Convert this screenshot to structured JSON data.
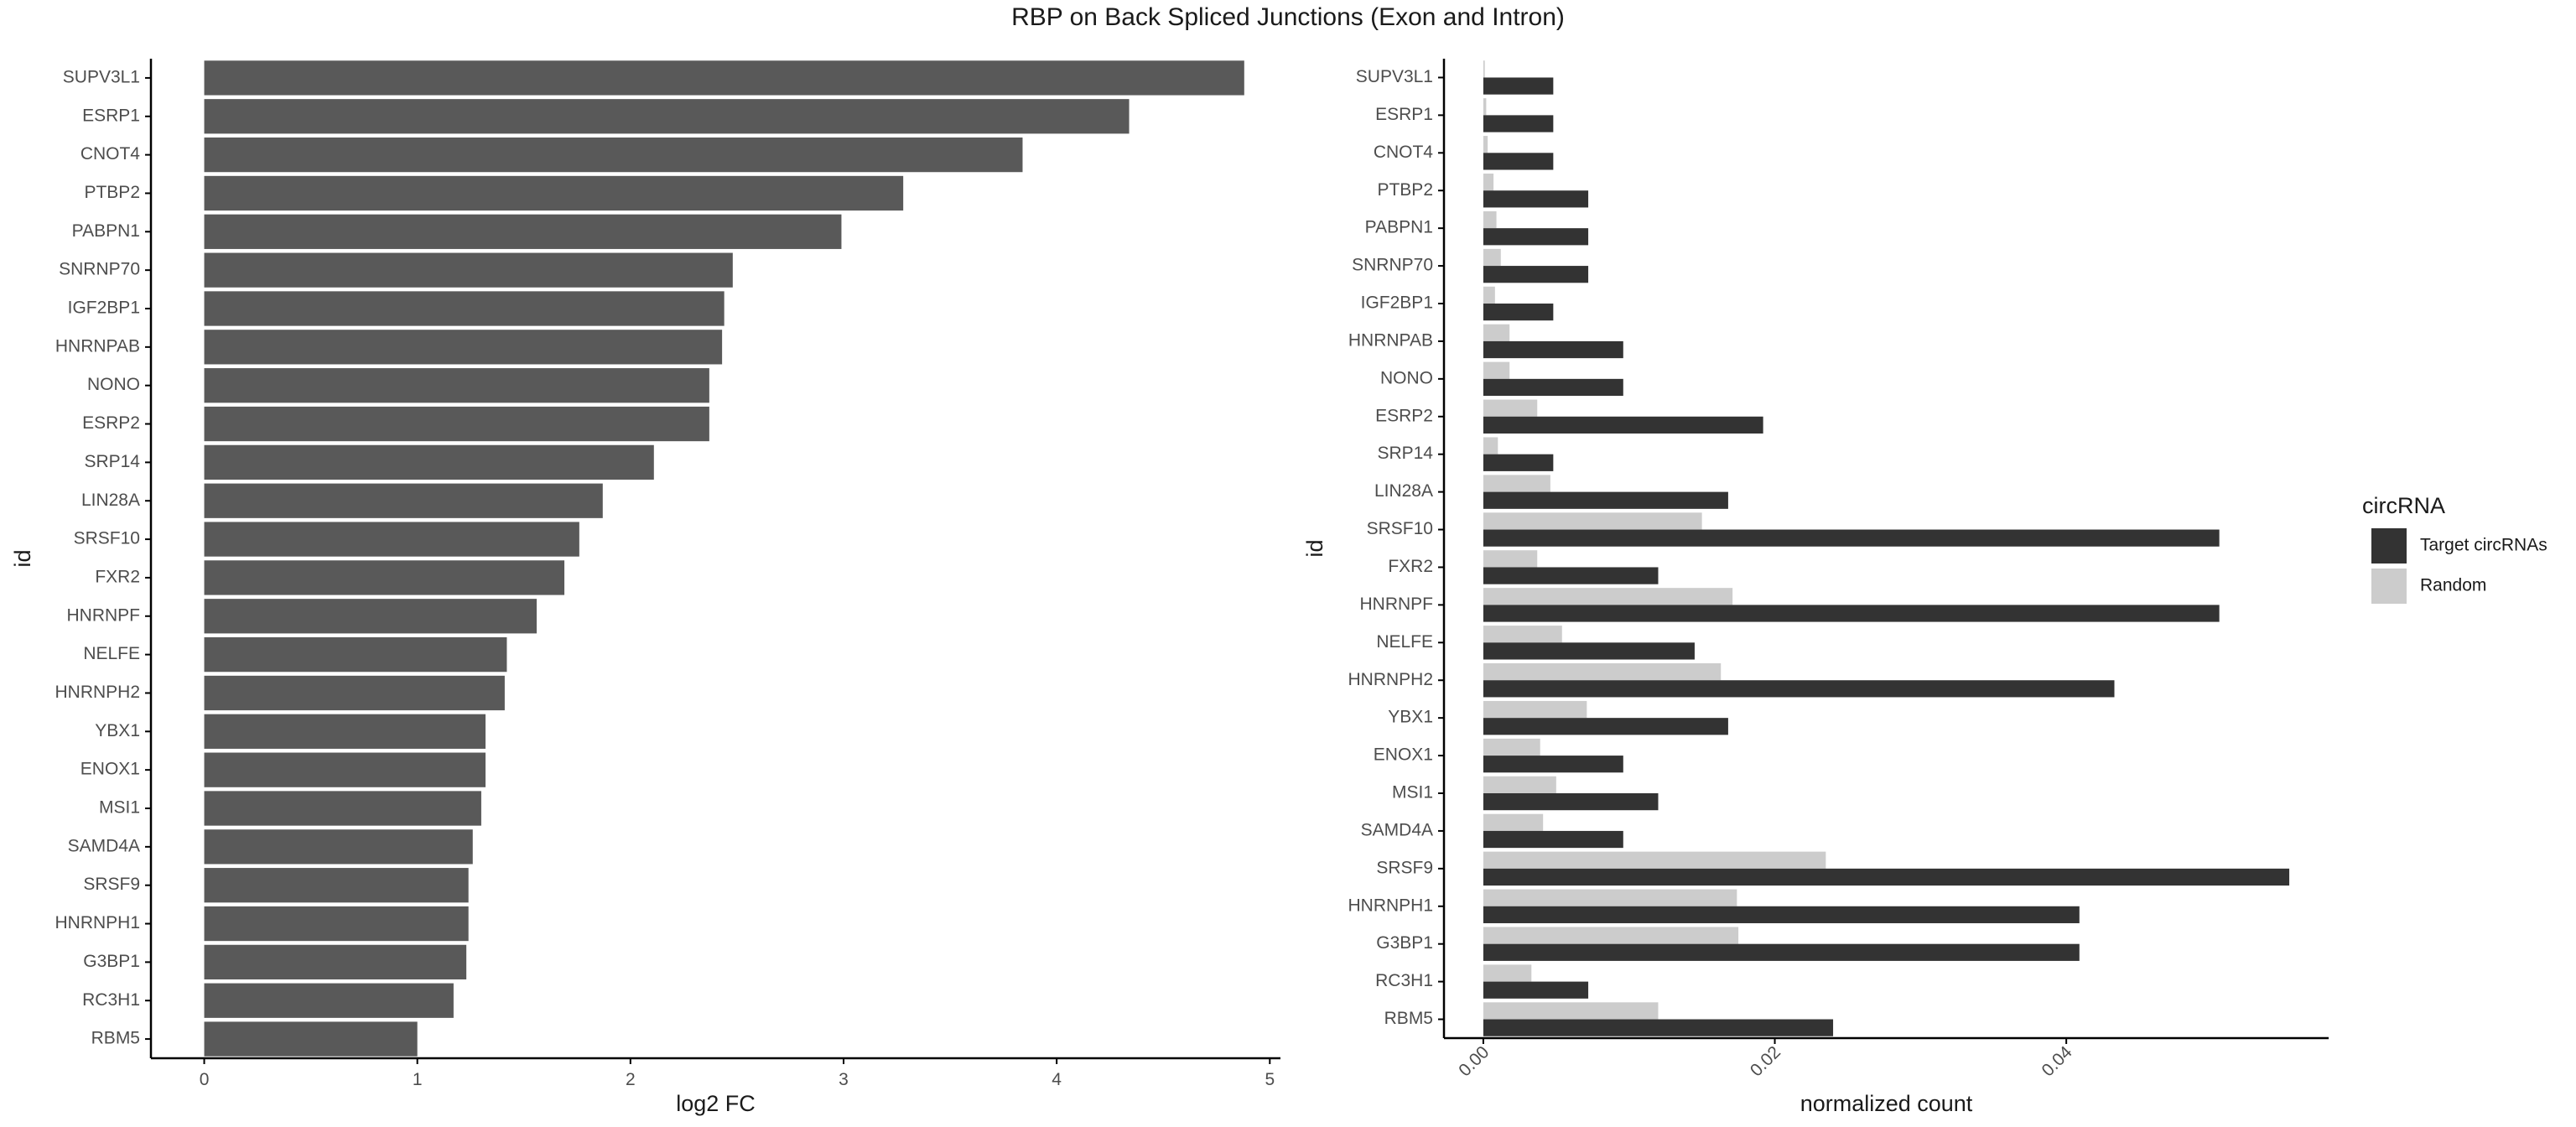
{
  "title": "RBP on Back Spliced Junctions (Exon and Intron)",
  "colors": {
    "bar_left": "#595959",
    "target": "#333333",
    "random": "#cccccc",
    "axis": "#000000",
    "text": "#4d4d4d"
  },
  "chart_data": [
    {
      "type": "bar",
      "orientation": "horizontal",
      "xlabel": "log2 FC",
      "ylabel": "id",
      "xlim": [
        -0.25,
        5.05
      ],
      "xticks": [
        0,
        1,
        2,
        3,
        4,
        5
      ],
      "xtick_labels": [
        "0",
        "1",
        "2",
        "3",
        "4",
        "5"
      ],
      "grid": false,
      "categories": [
        "SUPV3L1",
        "ESRP1",
        "CNOT4",
        "PTBP2",
        "PABPN1",
        "SNRNP70",
        "IGF2BP1",
        "HNRNPAB",
        "NONO",
        "ESRP2",
        "SRP14",
        "LIN28A",
        "SRSF10",
        "FXR2",
        "HNRNPF",
        "NELFE",
        "HNRNPH2",
        "YBX1",
        "ENOX1",
        "MSI1",
        "SAMD4A",
        "SRSF9",
        "HNRNPH1",
        "G3BP1",
        "RC3H1",
        "RBM5"
      ],
      "values": [
        4.88,
        4.34,
        3.84,
        3.28,
        2.99,
        2.48,
        2.44,
        2.43,
        2.37,
        2.37,
        2.11,
        1.87,
        1.76,
        1.69,
        1.56,
        1.42,
        1.41,
        1.32,
        1.32,
        1.3,
        1.26,
        1.24,
        1.24,
        1.23,
        1.17,
        1.0
      ]
    },
    {
      "type": "bar",
      "orientation": "horizontal",
      "grouped": true,
      "xlabel": "normalized count",
      "ylabel": "id",
      "xlim": [
        -0.0027,
        0.058
      ],
      "xticks": [
        0,
        0.02,
        0.04
      ],
      "xtick_labels": [
        "0.00",
        "0.02",
        "0.04"
      ],
      "grid": false,
      "categories": [
        "SUPV3L1",
        "ESRP1",
        "CNOT4",
        "PTBP2",
        "PABPN1",
        "SNRNP70",
        "IGF2BP1",
        "HNRNPAB",
        "NONO",
        "ESRP2",
        "SRP14",
        "LIN28A",
        "SRSF10",
        "FXR2",
        "HNRNPF",
        "NELFE",
        "HNRNPH2",
        "YBX1",
        "ENOX1",
        "MSI1",
        "SAMD4A",
        "SRSF9",
        "HNRNPH1",
        "G3BP1",
        "RC3H1",
        "RBM5"
      ],
      "series": [
        {
          "name": "Target circRNAs",
          "values": [
            0.0048,
            0.0048,
            0.0048,
            0.0072,
            0.0072,
            0.0072,
            0.0048,
            0.0096,
            0.0096,
            0.0192,
            0.0048,
            0.0168,
            0.0505,
            0.012,
            0.0505,
            0.0145,
            0.0433,
            0.0168,
            0.0096,
            0.012,
            0.0096,
            0.0553,
            0.0409,
            0.0409,
            0.0072,
            0.024
          ]
        },
        {
          "name": "Random",
          "values": [
            0.0001,
            0.0002,
            0.0003,
            0.0007,
            0.0009,
            0.0012,
            0.0008,
            0.0018,
            0.0018,
            0.0037,
            0.001,
            0.0046,
            0.015,
            0.0037,
            0.0171,
            0.0054,
            0.0163,
            0.0071,
            0.0039,
            0.005,
            0.0041,
            0.0235,
            0.0174,
            0.0175,
            0.0033,
            0.012
          ]
        }
      ],
      "legend": {
        "title": "circRNA",
        "position": "right",
        "entries": [
          "Target circRNAs",
          "Random"
        ]
      }
    }
  ]
}
